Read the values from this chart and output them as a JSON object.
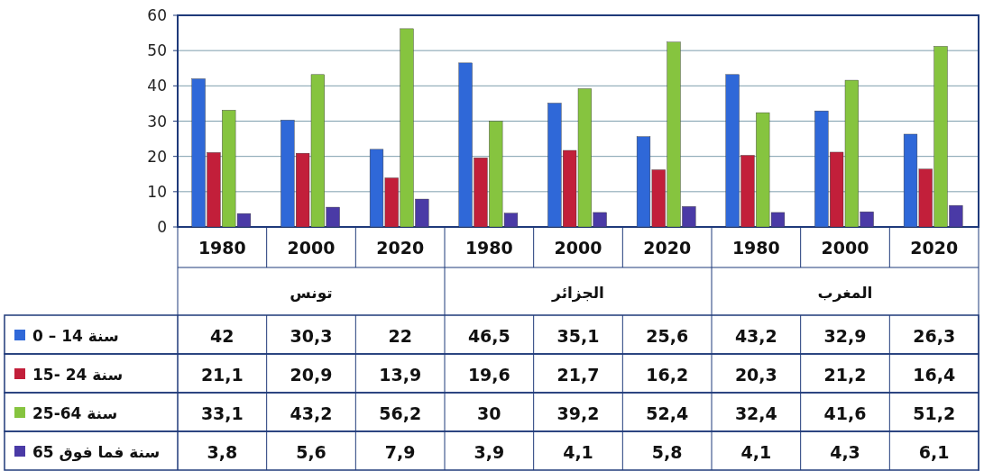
{
  "chart_data": {
    "type": "bar",
    "categories": [
      "1980",
      "2000",
      "2020",
      "1980",
      "2000",
      "2020",
      "1980",
      "2000",
      "2020"
    ],
    "annotations": [
      "تونس",
      "الجزائر",
      "المغرب"
    ],
    "series": [
      {
        "name": "0 – 14 سنة",
        "color": "#2f68d8",
        "values": [
          42,
          30.3,
          22,
          46.5,
          35.1,
          25.6,
          43.2,
          32.9,
          26.3
        ],
        "value_labels": [
          "42",
          "30,3",
          "22",
          "46,5",
          "35,1",
          "25,6",
          "43,2",
          "32,9",
          "26,3"
        ]
      },
      {
        "name": "15- 24 سنة",
        "color": "#c21f3a",
        "values": [
          21.1,
          20.9,
          13.9,
          19.6,
          21.7,
          16.2,
          20.3,
          21.2,
          16.4
        ],
        "value_labels": [
          "21,1",
          "20,9",
          "13,9",
          "19,6",
          "21,7",
          "16,2",
          "20,3",
          "21,2",
          "16,4"
        ]
      },
      {
        "name": "25-64 سنة",
        "color": "#86c43f",
        "values": [
          33.1,
          43.2,
          56.2,
          30,
          39.2,
          52.4,
          32.4,
          41.6,
          51.2
        ],
        "value_labels": [
          "33,1",
          "43,2",
          "56,2",
          "30",
          "39,2",
          "52,4",
          "32,4",
          "41,6",
          "51,2"
        ]
      },
      {
        "name": "65 سنة فما فوق",
        "color": "#4a3aa6",
        "values": [
          3.8,
          5.6,
          7.9,
          3.9,
          4.1,
          5.8,
          4.1,
          4.3,
          6.1
        ],
        "value_labels": [
          "3,8",
          "5,6",
          "7,9",
          "3,9",
          "4,1",
          "5,8",
          "4,1",
          "4,3",
          "6,1"
        ]
      }
    ],
    "ylim": [
      0,
      60
    ],
    "yticks": [
      0,
      10,
      20,
      30,
      40,
      50,
      60
    ],
    "grid": "y",
    "legend": "bottom left"
  }
}
